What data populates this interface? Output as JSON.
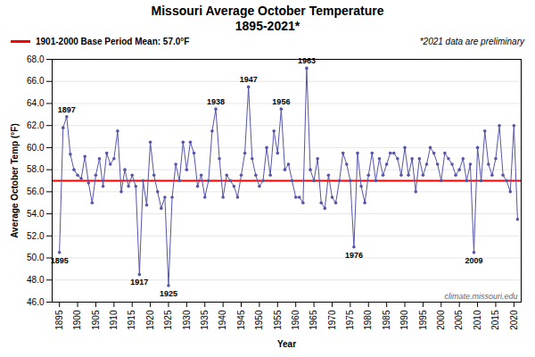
{
  "chart_data": {
    "type": "line",
    "title": "Missouri Average October Temperature",
    "subtitle": "1895-2021*",
    "x_label": "Year",
    "y_label": "Average October Temp (°F)",
    "x": [
      1895,
      1896,
      1897,
      1898,
      1899,
      1900,
      1901,
      1902,
      1903,
      1904,
      1905,
      1906,
      1907,
      1908,
      1909,
      1910,
      1911,
      1912,
      1913,
      1914,
      1915,
      1916,
      1917,
      1918,
      1919,
      1920,
      1921,
      1922,
      1923,
      1924,
      1925,
      1926,
      1927,
      1928,
      1929,
      1930,
      1931,
      1932,
      1933,
      1934,
      1935,
      1936,
      1937,
      1938,
      1939,
      1940,
      1941,
      1942,
      1943,
      1944,
      1945,
      1946,
      1947,
      1948,
      1949,
      1950,
      1951,
      1952,
      1953,
      1954,
      1955,
      1956,
      1957,
      1958,
      1959,
      1960,
      1961,
      1962,
      1963,
      1964,
      1965,
      1966,
      1967,
      1968,
      1969,
      1970,
      1971,
      1972,
      1973,
      1974,
      1975,
      1976,
      1977,
      1978,
      1979,
      1980,
      1981,
      1982,
      1983,
      1984,
      1985,
      1986,
      1987,
      1988,
      1989,
      1990,
      1991,
      1992,
      1993,
      1994,
      1995,
      1996,
      1997,
      1998,
      1999,
      2000,
      2001,
      2002,
      2003,
      2004,
      2005,
      2006,
      2007,
      2008,
      2009,
      2010,
      2011,
      2012,
      2013,
      2014,
      2015,
      2016,
      2017,
      2018,
      2019,
      2020,
      2021
    ],
    "values": [
      50.5,
      61.8,
      62.8,
      59.4,
      58.0,
      57.5,
      57.2,
      59.2,
      56.8,
      55.0,
      57.5,
      59.0,
      56.5,
      59.5,
      58.5,
      59.0,
      61.5,
      56.0,
      58.0,
      56.5,
      57.5,
      56.5,
      48.5,
      57.0,
      54.8,
      60.5,
      57.5,
      56.0,
      54.5,
      55.5,
      47.5,
      55.5,
      58.5,
      57.0,
      60.5,
      58.0,
      60.5,
      59.5,
      56.5,
      57.5,
      55.5,
      57.0,
      61.5,
      63.5,
      59.0,
      55.5,
      57.5,
      57.0,
      56.5,
      55.5,
      57.5,
      59.5,
      65.5,
      59.0,
      57.5,
      56.5,
      57.0,
      60.0,
      57.5,
      61.5,
      59.5,
      63.5,
      58.0,
      58.5,
      57.0,
      55.5,
      55.5,
      55.0,
      67.2,
      58.0,
      57.0,
      59.0,
      55.0,
      54.5,
      57.5,
      55.5,
      55.0,
      57.0,
      59.5,
      58.5,
      57.0,
      51.0,
      59.5,
      56.5,
      55.0,
      57.5,
      59.5,
      57.0,
      59.0,
      57.5,
      58.5,
      59.5,
      59.5,
      59.0,
      57.5,
      60.0,
      57.5,
      59.0,
      56.0,
      59.0,
      57.5,
      58.5,
      60.0,
      59.5,
      58.5,
      57.0,
      59.5,
      59.0,
      58.5,
      57.5,
      58.0,
      59.0,
      57.0,
      58.5,
      50.5,
      60.0,
      57.0,
      61.5,
      58.5,
      57.5,
      59.0,
      62.0,
      57.5,
      57.0,
      56.0,
      62.0,
      53.5
    ],
    "color": "#5555aa",
    "marker": "circle",
    "xlim": [
      1893,
      2022
    ],
    "xticks": [
      1895,
      1900,
      1905,
      1910,
      1915,
      1920,
      1925,
      1930,
      1935,
      1940,
      1945,
      1950,
      1955,
      1960,
      1965,
      1970,
      1975,
      1980,
      1985,
      1990,
      1995,
      2000,
      2005,
      2010,
      2015,
      2020
    ],
    "ylim": [
      46.0,
      68.0
    ],
    "yticks": [
      {
        "value": 46.0,
        "label": "46.0"
      },
      {
        "value": 48.0,
        "label": "48.0"
      },
      {
        "value": 50.0,
        "label": "50.0"
      },
      {
        "value": 52.0,
        "label": "52.0"
      },
      {
        "value": 54.0,
        "label": "54.0"
      },
      {
        "value": 56.0,
        "label": "56.0"
      },
      {
        "value": 58.0,
        "label": "58.0"
      },
      {
        "value": 60.0,
        "label": "60.0"
      },
      {
        "value": 62.0,
        "label": "62.0"
      },
      {
        "value": 64.0,
        "label": "64.0"
      },
      {
        "value": 66.0,
        "label": "66.0"
      },
      {
        "value": 68.0,
        "label": "68.0"
      }
    ],
    "grid": true,
    "base_mean": {
      "value": 57.0,
      "label": "1901-2000 Base Period Mean: 57.0°F",
      "color": "#ff0000"
    },
    "note": "*2021 data are preliminary",
    "watermark": "climate.missouri.edu",
    "annotations": [
      {
        "text": "1895",
        "x": 1895,
        "y": 50.5
      },
      {
        "text": "1897",
        "x": 1897,
        "y": 62.8
      },
      {
        "text": "1917",
        "x": 1917,
        "y": 48.5
      },
      {
        "text": "1925",
        "x": 1925,
        "y": 47.5
      },
      {
        "text": "1938",
        "x": 1938,
        "y": 63.5
      },
      {
        "text": "1947",
        "x": 1947,
        "y": 65.5
      },
      {
        "text": "1956",
        "x": 1956,
        "y": 63.5
      },
      {
        "text": "1963",
        "x": 1963,
        "y": 67.2
      },
      {
        "text": "1976",
        "x": 1976,
        "y": 51.0
      },
      {
        "text": "2009",
        "x": 2009,
        "y": 50.5
      }
    ]
  }
}
